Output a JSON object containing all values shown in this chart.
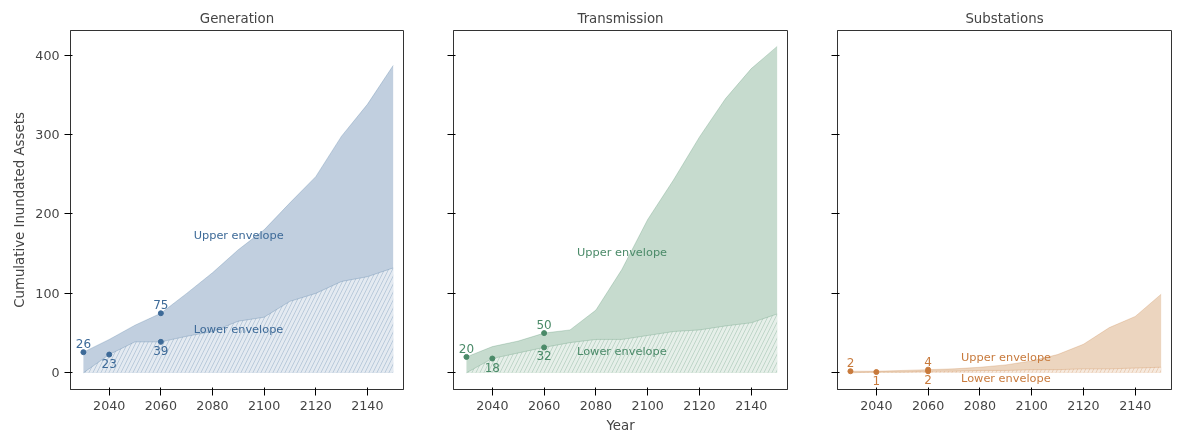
{
  "chart_data": [
    {
      "type": "area",
      "title": "Generation",
      "ylabel": "Cumulative Inundated Assets",
      "x": [
        2030,
        2040,
        2050,
        2060,
        2070,
        2080,
        2090,
        2100,
        2110,
        2120,
        2130,
        2140,
        2150
      ],
      "xlim": [
        2025,
        2154
      ],
      "ylim": [
        -21,
        431
      ],
      "xticks": [
        2040,
        2060,
        2080,
        2100,
        2120,
        2140
      ],
      "yticks": [
        0,
        100,
        200,
        300,
        400
      ],
      "series": [
        {
          "name": "Upper envelope",
          "color": "#c1cfdf",
          "values": [
            26,
            42,
            60,
            75,
            100,
            126,
            155,
            180,
            214,
            247,
            298,
            338,
            387
          ]
        },
        {
          "name": "Lower envelope",
          "color": "#e4eaf1",
          "values": [
            0,
            23,
            39,
            39,
            46,
            52,
            65,
            70,
            90,
            100,
            115,
            121,
            132
          ]
        },
        {
          "type": "scatter",
          "color": "#3d6a98",
          "x": [
            2030,
            2040,
            2060,
            2060
          ],
          "values": [
            26,
            23,
            75,
            39
          ],
          "value_labels": [
            "26",
            "23",
            "75",
            "39"
          ]
        }
      ],
      "legend": false
    },
    {
      "type": "area",
      "title": "Transmission",
      "xlabel": "Year",
      "tick_labels": "x",
      "x": [
        2030,
        2040,
        2050,
        2060,
        2070,
        2080,
        2090,
        2100,
        2110,
        2120,
        2130,
        2140,
        2150
      ],
      "xlim": [
        2025,
        2154
      ],
      "ylim": [
        -21,
        431
      ],
      "xticks": [
        2040,
        2060,
        2080,
        2100,
        2120,
        2140
      ],
      "yticks": [
        0,
        100,
        200,
        300,
        400
      ],
      "series": [
        {
          "name": "Upper envelope",
          "color": "#c6dbce",
          "values": [
            20,
            33,
            40,
            50,
            54,
            79,
            130,
            193,
            243,
            297,
            345,
            383,
            411
          ]
        },
        {
          "name": "Lower envelope",
          "color": "#e6efe9",
          "values": [
            0,
            18,
            25,
            32,
            38,
            42,
            42,
            47,
            52,
            54,
            59,
            63,
            74
          ]
        },
        {
          "type": "scatter",
          "color": "#4a8a68",
          "x": [
            2030,
            2040,
            2060,
            2060
          ],
          "values": [
            20,
            18,
            50,
            32
          ],
          "value_labels": [
            "20",
            "18",
            "50",
            "32"
          ]
        }
      ],
      "legend": false
    },
    {
      "type": "area",
      "title": "Substations",
      "tick_labels": "x",
      "x": [
        2030,
        2040,
        2050,
        2060,
        2070,
        2080,
        2090,
        2100,
        2110,
        2120,
        2130,
        2140,
        2150
      ],
      "xlim": [
        2025,
        2154
      ],
      "ylim": [
        -21,
        431
      ],
      "xticks": [
        2040,
        2060,
        2080,
        2100,
        2120,
        2140
      ],
      "yticks": [
        0,
        100,
        200,
        300,
        400
      ],
      "series": [
        {
          "name": "Upper envelope",
          "color": "#ecd5bf",
          "values": [
            2,
            2,
            3,
            4,
            5,
            7,
            10,
            15,
            23,
            36,
            57,
            71,
            99
          ]
        },
        {
          "name": "Lower envelope",
          "color": "#f6eadf",
          "values": [
            0,
            1,
            1,
            2,
            2,
            3,
            3,
            4,
            4,
            5,
            5,
            6,
            7
          ]
        },
        {
          "type": "scatter",
          "color": "#c87a3c",
          "x": [
            2030,
            2040,
            2060,
            2060
          ],
          "values": [
            2,
            1,
            4,
            2
          ],
          "value_labels": [
            "2",
            "1",
            "4",
            "2"
          ]
        }
      ],
      "legend": false
    }
  ]
}
